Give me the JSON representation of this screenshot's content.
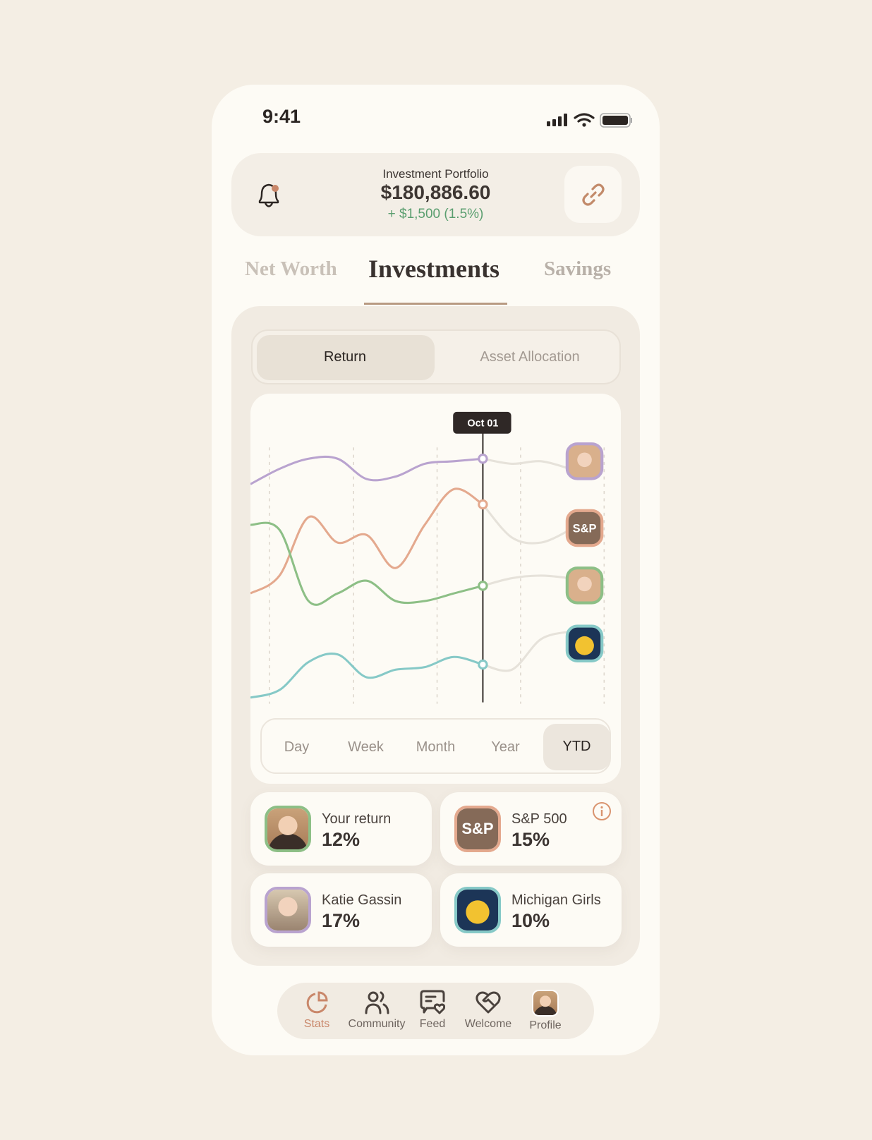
{
  "status_bar": {
    "time": "9:41"
  },
  "header": {
    "title": "Investment Portfolio",
    "value": "$180,886.60",
    "change": "+ $1,500 (1.5%)",
    "change_color": "#5a9e6f",
    "icons": [
      "bell-icon",
      "link-icon"
    ]
  },
  "tabs": [
    {
      "label": "Net Worth"
    },
    {
      "label": "Investments",
      "active": true
    },
    {
      "label": "Savings"
    }
  ],
  "segment": {
    "options": [
      "Return",
      "Asset Allocation"
    ],
    "selected": "Return"
  },
  "chart_data": {
    "type": "line",
    "tooltip": "Oct 01",
    "cursor_index": 8,
    "series": [
      {
        "key": "katie",
        "color": "#b9a3cf",
        "values": [
          87,
          93,
          97,
          97,
          89,
          90,
          95,
          96,
          97,
          95,
          96,
          93
        ]
      },
      {
        "key": "sp500",
        "color": "#e4a98e",
        "values": [
          44,
          51,
          74,
          64,
          67,
          54,
          71,
          85,
          79,
          66,
          64,
          69
        ]
      },
      {
        "key": "you",
        "color": "#8dbf86",
        "values": [
          71,
          69,
          41,
          44,
          49,
          41,
          41,
          44,
          47,
          50,
          51,
          50
        ]
      },
      {
        "key": "michigan",
        "color": "#86c9c7",
        "values": [
          3,
          6,
          17,
          20,
          11,
          14,
          15,
          19,
          16,
          14,
          26,
          29
        ]
      }
    ],
    "end_labels": [
      "",
      "S&P",
      "",
      ""
    ]
  },
  "ranges": {
    "options": [
      "Day",
      "Week",
      "Month",
      "Year",
      "YTD"
    ],
    "selected": "YTD"
  },
  "cards": [
    {
      "label": "Your return",
      "value": "12%",
      "border": "#8dbf86"
    },
    {
      "label": "S&P 500",
      "value": "15%",
      "border": "#e4a98e",
      "badge": "S&P"
    },
    {
      "label": "Katie Gassin",
      "value": "17%",
      "border": "#b9a3cf"
    },
    {
      "label": "Michigan Girls",
      "value": "10%",
      "border": "#86c9c7"
    }
  ],
  "nav": [
    {
      "label": "Stats",
      "active": true
    },
    {
      "label": "Community"
    },
    {
      "label": "Feed"
    },
    {
      "label": "Welcome"
    },
    {
      "label": "Profile"
    }
  ],
  "colors": {
    "accent": "#c9876a",
    "background": "#f4eee4"
  }
}
